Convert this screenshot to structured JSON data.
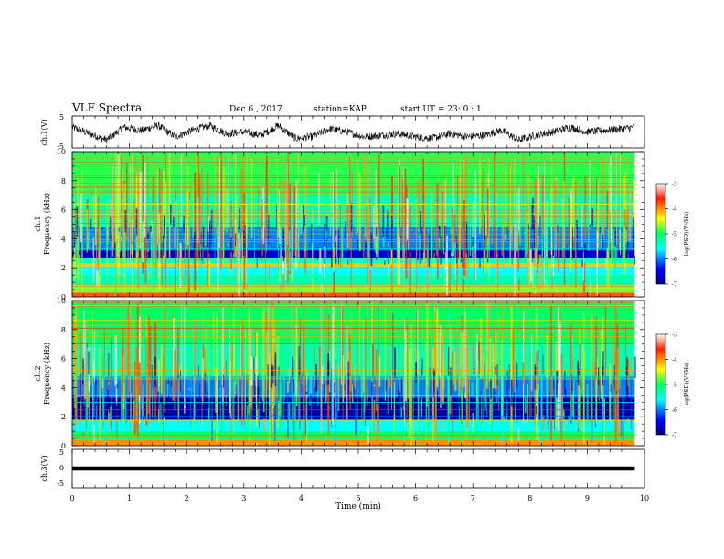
{
  "header": {
    "title": "VLF Spectra",
    "date": "Dec.6 , 2017",
    "station": "station=KAP",
    "start": "start UT = 23: 0 : 1"
  },
  "chart_data": [
    {
      "type": "line",
      "panel": "ch1-waveform",
      "ylabel": "ch.1(V)",
      "ylim": [
        -5,
        5
      ],
      "yticks": [
        "5",
        "-5"
      ],
      "xlim": [
        0,
        10
      ],
      "data_extent_min": 9.83,
      "trend_x": [
        0,
        0.3,
        0.6,
        0.9,
        1.2,
        1.5,
        1.8,
        2.1,
        2.4,
        2.7,
        3.0,
        3.3,
        3.6,
        3.9,
        4.2,
        4.5,
        4.8,
        5.1,
        5.4,
        5.7,
        6.0,
        6.3,
        6.6,
        6.9,
        7.2,
        7.5,
        7.8,
        8.1,
        8.4,
        8.7,
        9.0,
        9.3,
        9.6,
        9.83
      ],
      "trend_y": [
        1.5,
        -0.5,
        -2.5,
        1.5,
        0.5,
        2.0,
        -1.5,
        0.5,
        2.0,
        -0.5,
        0.0,
        -1.0,
        2.0,
        -2.0,
        -1.5,
        1.0,
        0.0,
        -1.5,
        -1.0,
        -0.5,
        -1.5,
        -2.0,
        -0.5,
        -1.5,
        -1.0,
        0.5,
        -2.5,
        -1.0,
        0.0,
        1.5,
        0.0,
        0.5,
        1.0,
        1.5
      ],
      "noise_amplitude": 1.2
    },
    {
      "type": "heatmap",
      "panel": "ch1-spectrogram",
      "ylabel": "ch.1\nFrequency (kHz)",
      "ylim": [
        0,
        10
      ],
      "yticks": [
        "0",
        "2",
        "4",
        "6",
        "8",
        "10"
      ],
      "colorbar": {
        "label": "log(PSD)(V²/Hz)",
        "range": [
          -7,
          -3
        ],
        "ticks": [
          "-3",
          "-4",
          "-5",
          "-6",
          "-7"
        ]
      },
      "bands_khz": [
        {
          "range": [
            0.0,
            0.3
          ],
          "level": -3.8
        },
        {
          "range": [
            0.3,
            0.8
          ],
          "level": -4.7
        },
        {
          "range": [
            0.8,
            1.5
          ],
          "level": -5.3
        },
        {
          "range": [
            1.5,
            2.1
          ],
          "level": -5.6
        },
        {
          "range": [
            2.1,
            2.3
          ],
          "level": -4.2
        },
        {
          "range": [
            2.3,
            2.7
          ],
          "level": -5.4
        },
        {
          "range": [
            2.7,
            3.2
          ],
          "level": -6.6
        },
        {
          "range": [
            3.2,
            4.8
          ],
          "level": -6.0
        },
        {
          "range": [
            4.8,
            7.0
          ],
          "level": -5.3
        },
        {
          "range": [
            7.0,
            10.0
          ],
          "level": -4.9
        }
      ]
    },
    {
      "type": "heatmap",
      "panel": "ch2-spectrogram",
      "ylabel": "ch.2\nFrequency (kHz)",
      "ylim": [
        0,
        10
      ],
      "yticks": [
        "0",
        "2",
        "4",
        "6",
        "8",
        "10"
      ],
      "colorbar": {
        "label": "log(PSD)(V²/Hz)",
        "range": [
          -7,
          -3
        ],
        "ticks": [
          "-3",
          "-4",
          "-5",
          "-6",
          "-7"
        ]
      },
      "bands_khz": [
        {
          "range": [
            0.0,
            0.4
          ],
          "level": -4.0
        },
        {
          "range": [
            0.4,
            1.0
          ],
          "level": -5.0
        },
        {
          "range": [
            1.0,
            1.8
          ],
          "level": -5.6
        },
        {
          "range": [
            1.8,
            3.3
          ],
          "level": -6.85
        },
        {
          "range": [
            3.3,
            4.8
          ],
          "level": -6.0
        },
        {
          "range": [
            4.8,
            7.0
          ],
          "level": -5.3
        },
        {
          "range": [
            7.0,
            10.0
          ],
          "level": -5.0
        }
      ]
    },
    {
      "type": "line",
      "panel": "ch3-waveform",
      "ylabel": "ch.3(V)",
      "ylim": [
        -5,
        5
      ],
      "yticks": [
        "5",
        "0",
        "-5"
      ],
      "constant_value": 0,
      "xlim": [
        0,
        10
      ],
      "xlabel": "Time (min)",
      "xticks": [
        "0",
        "1",
        "2",
        "3",
        "4",
        "5",
        "6",
        "7",
        "8",
        "9",
        "10"
      ]
    }
  ]
}
